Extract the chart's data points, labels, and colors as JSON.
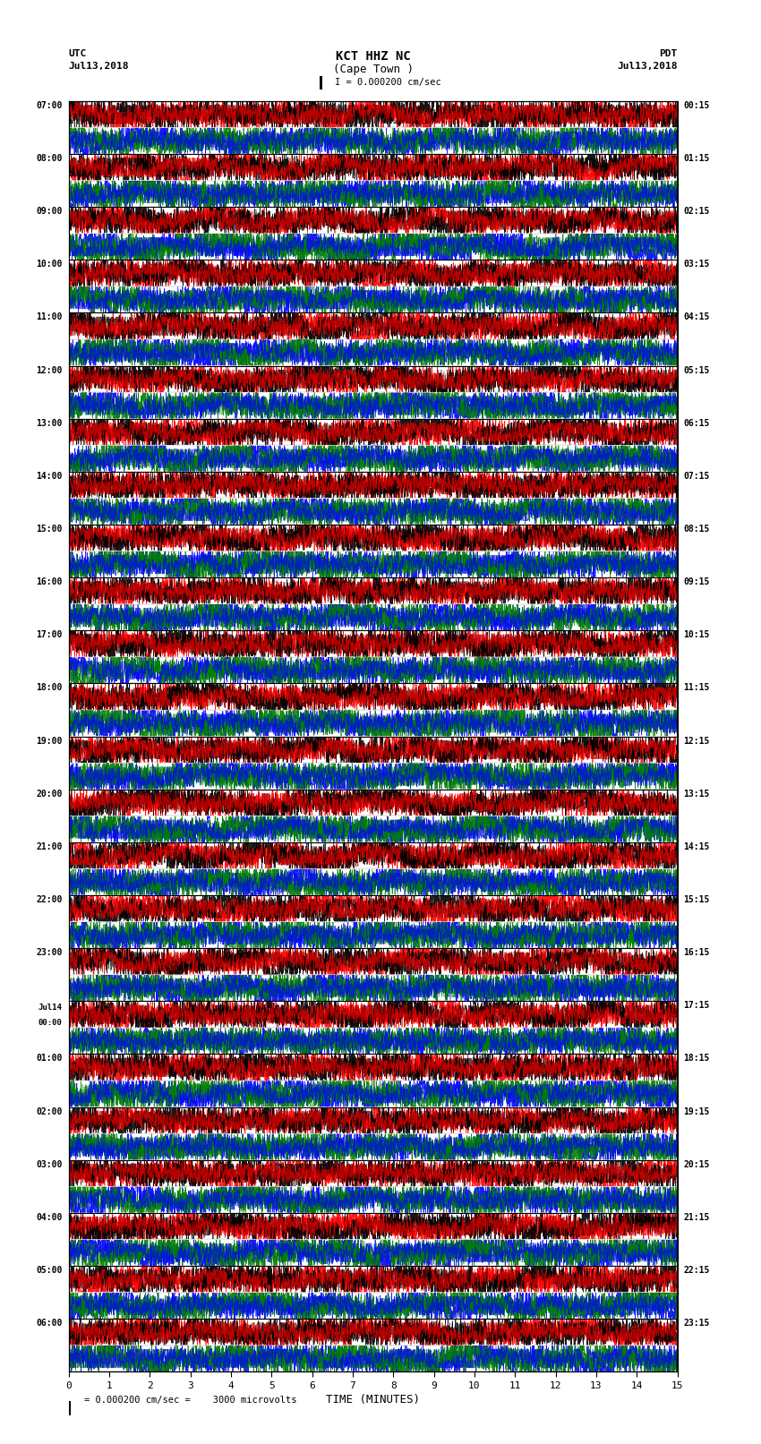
{
  "title_line1": "KCT HHZ NC",
  "title_line2": "(Cape Town )",
  "scale_label": "I = 0.000200 cm/sec",
  "left_label_top": "UTC",
  "left_label_date": "Jul13,2018",
  "right_label_top": "PDT",
  "right_label_date": "Jul13,2018",
  "bottom_label": "TIME (MINUTES)",
  "bottom_note": "= 0.000200 cm/sec =    3000 microvolts",
  "utc_times_left": [
    "07:00",
    "08:00",
    "09:00",
    "10:00",
    "11:00",
    "12:00",
    "13:00",
    "14:00",
    "15:00",
    "16:00",
    "17:00",
    "18:00",
    "19:00",
    "20:00",
    "21:00",
    "22:00",
    "23:00",
    "Jul14\n00:00",
    "01:00",
    "02:00",
    "03:00",
    "04:00",
    "05:00",
    "06:00"
  ],
  "pdt_times_right": [
    "00:15",
    "01:15",
    "02:15",
    "03:15",
    "04:15",
    "05:15",
    "06:15",
    "07:15",
    "08:15",
    "09:15",
    "10:15",
    "11:15",
    "12:15",
    "13:15",
    "14:15",
    "15:15",
    "16:15",
    "17:15",
    "18:15",
    "19:15",
    "20:15",
    "21:15",
    "22:15",
    "23:15"
  ],
  "n_rows": 24,
  "x_ticks": [
    0,
    1,
    2,
    3,
    4,
    5,
    6,
    7,
    8,
    9,
    10,
    11,
    12,
    13,
    14,
    15
  ],
  "bg_color": "#ffffff",
  "fig_width": 8.5,
  "fig_height": 16.13,
  "dpi": 100
}
